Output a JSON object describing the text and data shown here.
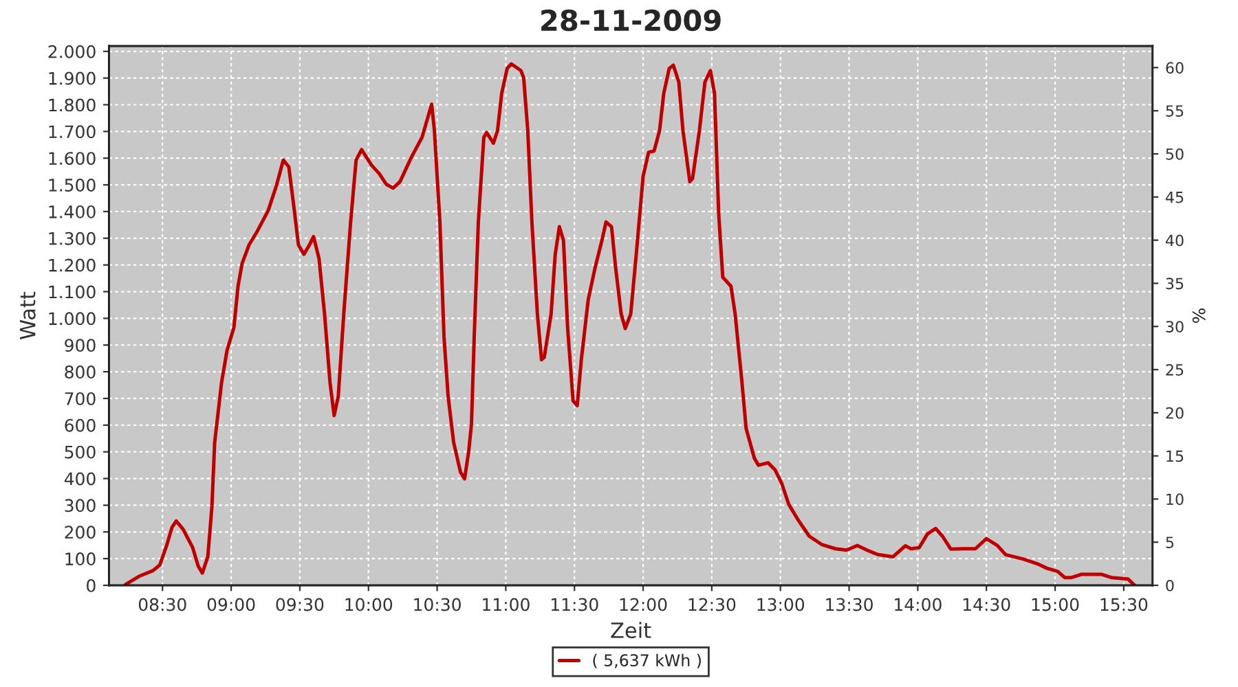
{
  "chart_data": {
    "type": "line",
    "title": "28-11-2009",
    "xlabel": "Zeit",
    "ylabel": "Watt",
    "y2label": "%",
    "xlim": [
      8.11,
      15.71
    ],
    "xticks": [
      {
        "value": 8.5,
        "label": "08:30"
      },
      {
        "value": 9,
        "label": "09:00"
      },
      {
        "value": 9.5,
        "label": "09:30"
      },
      {
        "value": 10,
        "label": "10:00"
      },
      {
        "value": 10.5,
        "label": "10:30"
      },
      {
        "value": 11,
        "label": "11:00"
      },
      {
        "value": 11.5,
        "label": "11:30"
      },
      {
        "value": 12,
        "label": "12:00"
      },
      {
        "value": 12.5,
        "label": "12:30"
      },
      {
        "value": 13,
        "label": "13:00"
      },
      {
        "value": 13.5,
        "label": "13:30"
      },
      {
        "value": 14,
        "label": "14:00"
      },
      {
        "value": 14.5,
        "label": "14:30"
      },
      {
        "value": 15,
        "label": "15:00"
      },
      {
        "value": 15.5,
        "label": "15:30"
      }
    ],
    "ylim": [
      0,
      2020
    ],
    "yticks": [
      0,
      100,
      200,
      300,
      400,
      500,
      600,
      700,
      800,
      900,
      {
        "value": 1000,
        "label": "1.000"
      },
      {
        "value": 1100,
        "label": "1.100"
      },
      {
        "value": 1200,
        "label": "1.200"
      },
      {
        "value": 1300,
        "label": "1.300"
      },
      {
        "value": 1400,
        "label": "1.400"
      },
      {
        "value": 1500,
        "label": "1.500"
      },
      {
        "value": 1600,
        "label": "1.600"
      },
      {
        "value": 1700,
        "label": "1.700"
      },
      {
        "value": 1800,
        "label": "1.800"
      },
      {
        "value": 1900,
        "label": "1.900"
      },
      {
        "value": 2000,
        "label": "2.000"
      }
    ],
    "y2lim": [
      0,
      62.5
    ],
    "y2ticks": [
      0,
      5,
      10,
      15,
      20,
      25,
      30,
      35,
      40,
      45,
      50,
      55,
      60
    ],
    "grid": true,
    "legend": "bottom",
    "line_style": "solid",
    "series": [
      {
        "name": "( 5,637 kWh )",
        "color": "#c00000",
        "x": [
          8.23,
          8.33,
          8.43,
          8.48,
          8.53,
          8.57,
          8.6,
          8.65,
          8.72,
          8.76,
          8.79,
          8.83,
          8.86,
          8.88,
          8.93,
          8.97,
          9.02,
          9.05,
          9.08,
          9.13,
          9.19,
          9.27,
          9.33,
          9.38,
          9.42,
          9.46,
          9.49,
          9.53,
          9.57,
          9.6,
          9.64,
          9.68,
          9.72,
          9.75,
          9.78,
          9.82,
          9.87,
          9.91,
          9.95,
          10.02,
          10.08,
          10.13,
          10.18,
          10.23,
          10.31,
          10.39,
          10.46,
          10.48,
          10.52,
          10.55,
          10.58,
          10.62,
          10.67,
          10.7,
          10.73,
          10.75,
          10.77,
          10.8,
          10.84,
          10.86,
          10.91,
          10.94,
          10.97,
          11.01,
          11.04,
          11.11,
          11.13,
          11.16,
          11.19,
          11.23,
          11.26,
          11.28,
          11.33,
          11.36,
          11.39,
          11.42,
          11.45,
          11.49,
          11.52,
          11.55,
          11.6,
          11.65,
          11.7,
          11.73,
          11.77,
          11.8,
          11.84,
          11.87,
          11.91,
          11.95,
          12.0,
          12.04,
          12.08,
          12.12,
          12.15,
          12.19,
          12.22,
          12.26,
          12.29,
          12.34,
          12.36,
          12.41,
          12.45,
          12.49,
          12.52,
          12.55,
          12.58,
          12.64,
          12.67,
          12.72,
          12.75,
          12.81,
          12.84,
          12.91,
          12.96,
          13.01,
          13.06,
          13.13,
          13.21,
          13.3,
          13.4,
          13.48,
          13.56,
          13.63,
          13.71,
          13.82,
          13.91,
          13.95,
          14.01,
          14.07,
          14.13,
          14.18,
          14.24,
          14.34,
          14.42,
          14.5,
          14.58,
          14.64,
          14.77,
          14.87,
          14.94,
          15.02,
          15.07,
          15.12,
          15.19,
          15.34,
          15.41,
          15.53,
          15.58
        ],
        "values": [
          3,
          34,
          55,
          76,
          149,
          218,
          241,
          210,
          141,
          72,
          46,
          107,
          296,
          536,
          759,
          880,
          966,
          1120,
          1206,
          1275,
          1326,
          1404,
          1498,
          1593,
          1567,
          1404,
          1275,
          1240,
          1275,
          1306,
          1223,
          1017,
          759,
          636,
          708,
          1017,
          1361,
          1593,
          1632,
          1575,
          1541,
          1502,
          1488,
          1512,
          1601,
          1678,
          1802,
          1704,
          1361,
          931,
          708,
          536,
          424,
          399,
          502,
          605,
          931,
          1361,
          1678,
          1696,
          1656,
          1704,
          1842,
          1936,
          1953,
          1928,
          1902,
          1704,
          1361,
          1017,
          845,
          854,
          1017,
          1240,
          1343,
          1292,
          966,
          691,
          673,
          845,
          1069,
          1189,
          1292,
          1361,
          1343,
          1189,
          1017,
          962,
          1017,
          1240,
          1532,
          1622,
          1627,
          1704,
          1842,
          1936,
          1948,
          1885,
          1704,
          1512,
          1524,
          1704,
          1885,
          1928,
          1842,
          1395,
          1154,
          1120,
          1017,
          759,
          588,
          476,
          450,
          459,
          433,
          381,
          304,
          244,
          184,
          153,
          137,
          132,
          149,
          132,
          115,
          107,
          148,
          137,
          141,
          192,
          213,
          184,
          136,
          137,
          137,
          175,
          149,
          115,
          98,
          81,
          64,
          52,
          29,
          29,
          41,
          41,
          29,
          24,
          0
        ]
      }
    ]
  }
}
